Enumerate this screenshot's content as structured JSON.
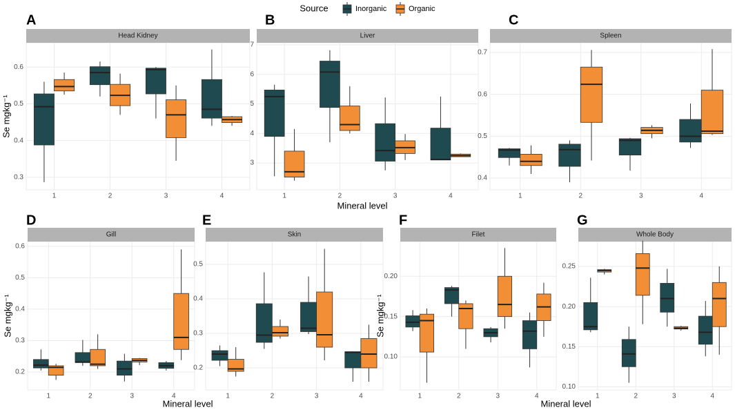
{
  "legend_title": "Source",
  "chart_data": [
    {
      "type": "box",
      "letter": "A",
      "title": "Head Kidney",
      "ylabel": "Se mgkg⁻¹",
      "categories": [
        "1",
        "2",
        "3",
        "4"
      ],
      "ylim": [
        0.266,
        0.666
      ],
      "yticks": [
        0.3,
        0.4,
        0.5,
        0.6
      ],
      "series": [
        {
          "name": "Inorganic",
          "color": "#1f4a50",
          "values": [
            {
              "min": 0.287,
              "q1": 0.388,
              "median": 0.492,
              "q3": 0.527,
              "max": 0.56
            },
            {
              "min": 0.52,
              "q1": 0.552,
              "median": 0.585,
              "q3": 0.601,
              "max": 0.615
            },
            {
              "min": 0.46,
              "q1": 0.527,
              "median": 0.593,
              "q3": 0.597,
              "max": 0.6
            },
            {
              "min": 0.44,
              "q1": 0.461,
              "median": 0.485,
              "q3": 0.566,
              "max": 0.648
            }
          ]
        },
        {
          "name": "Organic",
          "color": "#f28e35",
          "values": [
            {
              "min": 0.525,
              "q1": 0.535,
              "median": 0.547,
              "q3": 0.566,
              "max": 0.585
            },
            {
              "min": 0.47,
              "q1": 0.495,
              "median": 0.523,
              "q3": 0.553,
              "max": 0.582
            },
            {
              "min": 0.345,
              "q1": 0.408,
              "median": 0.47,
              "q3": 0.511,
              "max": 0.55
            },
            {
              "min": 0.44,
              "q1": 0.449,
              "median": 0.457,
              "q3": 0.465,
              "max": 0.467
            }
          ]
        }
      ]
    },
    {
      "type": "box",
      "letter": "B",
      "title": "Liver",
      "xlabel": "Mineral level",
      "categories": [
        "1",
        "2",
        "3",
        "4"
      ],
      "ylim": [
        2.09,
        7.07
      ],
      "yticks": [
        3,
        4,
        5,
        6,
        7
      ],
      "series": [
        {
          "name": "Inorganic",
          "color": "#1f4a50",
          "values": [
            {
              "min": 2.55,
              "q1": 3.9,
              "median": 5.25,
              "q3": 5.47,
              "max": 5.65
            },
            {
              "min": 3.7,
              "q1": 4.88,
              "median": 6.08,
              "q3": 6.45,
              "max": 6.82
            },
            {
              "min": 2.75,
              "q1": 3.06,
              "median": 3.42,
              "q3": 4.33,
              "max": 5.22
            },
            {
              "min": 3.1,
              "q1": 3.1,
              "median": 3.12,
              "q3": 4.18,
              "max": 5.25
            }
          ]
        },
        {
          "name": "Organic",
          "color": "#f28e35",
          "values": [
            {
              "min": 2.4,
              "q1": 2.52,
              "median": 2.7,
              "q3": 3.4,
              "max": 4.15
            },
            {
              "min": 4.0,
              "q1": 4.1,
              "median": 4.3,
              "q3": 4.93,
              "max": 5.6
            },
            {
              "min": 3.1,
              "q1": 3.32,
              "median": 3.52,
              "q3": 3.75,
              "max": 3.98
            },
            {
              "min": 3.2,
              "q1": 3.21,
              "median": 3.25,
              "q3": 3.3,
              "max": 3.32
            }
          ]
        }
      ]
    },
    {
      "type": "box",
      "letter": "C",
      "title": "Spleen",
      "categories": [
        "1",
        "2",
        "3",
        "4"
      ],
      "ylim": [
        0.372,
        0.723
      ],
      "yticks": [
        0.4,
        0.5,
        0.6,
        0.7
      ],
      "series": [
        {
          "name": "Inorganic",
          "color": "#1f4a50",
          "values": [
            {
              "min": 0.43,
              "q1": 0.449,
              "median": 0.467,
              "q3": 0.47,
              "max": 0.472
            },
            {
              "min": 0.39,
              "q1": 0.428,
              "median": 0.468,
              "q3": 0.481,
              "max": 0.49
            },
            {
              "min": 0.418,
              "q1": 0.455,
              "median": 0.49,
              "q3": 0.494,
              "max": 0.496
            },
            {
              "min": 0.472,
              "q1": 0.486,
              "median": 0.5,
              "q3": 0.54,
              "max": 0.578
            }
          ]
        },
        {
          "name": "Organic",
          "color": "#f28e35",
          "values": [
            {
              "min": 0.41,
              "q1": 0.43,
              "median": 0.44,
              "q3": 0.457,
              "max": 0.478
            },
            {
              "min": 0.442,
              "q1": 0.533,
              "median": 0.624,
              "q3": 0.665,
              "max": 0.706
            },
            {
              "min": 0.495,
              "q1": 0.506,
              "median": 0.514,
              "q3": 0.521,
              "max": 0.526
            },
            {
              "min": 0.503,
              "q1": 0.506,
              "median": 0.512,
              "q3": 0.61,
              "max": 0.708
            }
          ]
        }
      ]
    },
    {
      "type": "box",
      "letter": "D",
      "title": "Gill",
      "ylabel": "Se mgkg⁻¹",
      "xlabel": "Mineral level",
      "categories": [
        "1",
        "2",
        "3",
        "4"
      ],
      "ylim": [
        0.143,
        0.615
      ],
      "yticks": [
        0.2,
        0.3,
        0.4,
        0.5,
        0.6
      ],
      "series": [
        {
          "name": "Inorganic",
          "color": "#1f4a50",
          "values": [
            {
              "min": 0.205,
              "q1": 0.213,
              "median": 0.222,
              "q3": 0.24,
              "max": 0.272
            },
            {
              "min": 0.22,
              "q1": 0.23,
              "median": 0.232,
              "q3": 0.262,
              "max": 0.302
            },
            {
              "min": 0.17,
              "q1": 0.19,
              "median": 0.21,
              "q3": 0.235,
              "max": 0.258
            },
            {
              "min": 0.205,
              "q1": 0.212,
              "median": 0.22,
              "q3": 0.23,
              "max": 0.235
            }
          ]
        },
        {
          "name": "Organic",
          "color": "#f28e35",
          "values": [
            {
              "min": 0.175,
              "q1": 0.19,
              "median": 0.215,
              "q3": 0.22,
              "max": 0.226
            },
            {
              "min": 0.21,
              "q1": 0.22,
              "median": 0.225,
              "q3": 0.272,
              "max": 0.32
            },
            {
              "min": 0.222,
              "q1": 0.232,
              "median": 0.237,
              "q3": 0.243,
              "max": 0.245
            },
            {
              "min": 0.238,
              "q1": 0.272,
              "median": 0.31,
              "q3": 0.45,
              "max": 0.59
            }
          ]
        }
      ]
    },
    {
      "type": "box",
      "letter": "E",
      "title": "Skin",
      "categories": [
        "1",
        "2",
        "3",
        "4"
      ],
      "ylim": [
        0.136,
        0.566
      ],
      "yticks": [
        0.2,
        0.3,
        0.4,
        0.5
      ],
      "series": [
        {
          "name": "Inorganic",
          "color": "#1f4a50",
          "values": [
            {
              "min": 0.205,
              "q1": 0.222,
              "median": 0.24,
              "q3": 0.25,
              "max": 0.265
            },
            {
              "min": 0.255,
              "q1": 0.274,
              "median": 0.295,
              "q3": 0.386,
              "max": 0.477
            },
            {
              "min": 0.298,
              "q1": 0.305,
              "median": 0.315,
              "q3": 0.39,
              "max": 0.465
            },
            {
              "min": 0.16,
              "q1": 0.2,
              "median": 0.245,
              "q3": 0.247,
              "max": 0.248
            }
          ]
        },
        {
          "name": "Organic",
          "color": "#f28e35",
          "values": [
            {
              "min": 0.175,
              "q1": 0.19,
              "median": 0.197,
              "q3": 0.225,
              "max": 0.26
            },
            {
              "min": 0.285,
              "q1": 0.292,
              "median": 0.302,
              "q3": 0.32,
              "max": 0.34
            },
            {
              "min": 0.222,
              "q1": 0.26,
              "median": 0.296,
              "q3": 0.42,
              "max": 0.545
            },
            {
              "min": 0.16,
              "q1": 0.2,
              "median": 0.24,
              "q3": 0.285,
              "max": 0.325
            }
          ]
        }
      ]
    },
    {
      "type": "box",
      "letter": "F",
      "title": "Filet",
      "ylabel": "Se mgkg⁻¹",
      "categories": [
        "1",
        "2",
        "3",
        "4"
      ],
      "ylim": [
        0.059,
        0.243
      ],
      "yticks": [
        {
          "value": 0.1,
          "label": "0.10"
        },
        0.15,
        {
          "value": 0.2,
          "label": "0.20"
        }
      ],
      "series": [
        {
          "name": "Inorganic",
          "color": "#1f4a50",
          "values": [
            {
              "min": 0.132,
              "q1": 0.137,
              "median": 0.143,
              "q3": 0.151,
              "max": 0.158
            },
            {
              "min": 0.15,
              "q1": 0.166,
              "median": 0.183,
              "q3": 0.186,
              "max": 0.188
            },
            {
              "min": 0.118,
              "q1": 0.125,
              "median": 0.13,
              "q3": 0.135,
              "max": 0.137
            },
            {
              "min": 0.087,
              "q1": 0.11,
              "median": 0.132,
              "q3": 0.145,
              "max": 0.155
            }
          ]
        },
        {
          "name": "Organic",
          "color": "#f28e35",
          "values": [
            {
              "min": 0.068,
              "q1": 0.106,
              "median": 0.145,
              "q3": 0.153,
              "max": 0.16
            },
            {
              "min": 0.11,
              "q1": 0.135,
              "median": 0.16,
              "q3": 0.166,
              "max": 0.17
            },
            {
              "min": 0.135,
              "q1": 0.15,
              "median": 0.165,
              "q3": 0.2,
              "max": 0.235
            },
            {
              "min": 0.125,
              "q1": 0.145,
              "median": 0.162,
              "q3": 0.178,
              "max": 0.192
            }
          ]
        }
      ]
    },
    {
      "type": "box",
      "letter": "G",
      "title": "Whole Body",
      "xlabel": "Mineral level",
      "categories": [
        "1",
        "2",
        "3",
        "4"
      ],
      "ylim": [
        0.096,
        0.281
      ],
      "yticks": [
        {
          "value": 0.1,
          "label": "0.10"
        },
        0.15,
        {
          "value": 0.2,
          "label": "0.20"
        },
        0.25
      ],
      "series": [
        {
          "name": "Inorganic",
          "color": "#1f4a50",
          "values": [
            {
              "min": 0.168,
              "q1": 0.171,
              "median": 0.175,
              "q3": 0.205,
              "max": 0.236
            },
            {
              "min": 0.105,
              "q1": 0.125,
              "median": 0.141,
              "q3": 0.159,
              "max": 0.175
            },
            {
              "min": 0.175,
              "q1": 0.193,
              "median": 0.21,
              "q3": 0.229,
              "max": 0.247
            },
            {
              "min": 0.138,
              "q1": 0.153,
              "median": 0.168,
              "q3": 0.188,
              "max": 0.207
            }
          ]
        },
        {
          "name": "Organic",
          "color": "#f28e35",
          "values": [
            {
              "min": 0.24,
              "q1": 0.243,
              "median": 0.245,
              "q3": 0.246,
              "max": 0.247
            },
            {
              "min": 0.178,
              "q1": 0.214,
              "median": 0.248,
              "q3": 0.266,
              "max": 0.282
            },
            {
              "min": 0.17,
              "q1": 0.172,
              "median": 0.173,
              "q3": 0.175,
              "max": 0.176
            },
            {
              "min": 0.14,
              "q1": 0.175,
              "median": 0.21,
              "q3": 0.23,
              "max": 0.25
            }
          ]
        }
      ]
    }
  ]
}
